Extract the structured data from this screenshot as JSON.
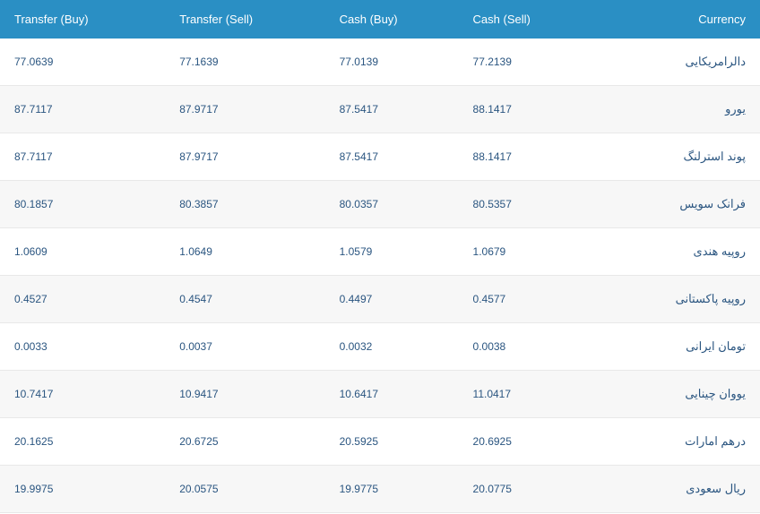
{
  "table": {
    "type": "table",
    "header_bg": "#2a8fc4",
    "header_text_color": "#ffffff",
    "row_even_bg": "#f7f7f7",
    "row_odd_bg": "#ffffff",
    "body_text_color": "#2a5580",
    "border_color": "#e8e8e8",
    "header_fontsize": 13,
    "body_fontsize": 12,
    "columns": [
      {
        "key": "transfer_buy",
        "label": "Transfer (Buy)",
        "align": "left"
      },
      {
        "key": "transfer_sell",
        "label": "Transfer (Sell)",
        "align": "left"
      },
      {
        "key": "cash_buy",
        "label": "Cash (Buy)",
        "align": "left"
      },
      {
        "key": "cash_sell",
        "label": "Cash (Sell)",
        "align": "left"
      },
      {
        "key": "currency",
        "label": "Currency",
        "align": "right"
      }
    ],
    "rows": [
      {
        "transfer_buy": "77.0639",
        "transfer_sell": "77.1639",
        "cash_buy": "77.0139",
        "cash_sell": "77.2139",
        "currency": "دالرامریکایی"
      },
      {
        "transfer_buy": "87.7117",
        "transfer_sell": "87.9717",
        "cash_buy": "87.5417",
        "cash_sell": "88.1417",
        "currency": "یورو"
      },
      {
        "transfer_buy": "87.7117",
        "transfer_sell": "87.9717",
        "cash_buy": "87.5417",
        "cash_sell": "88.1417",
        "currency": "پوند استرلنگ"
      },
      {
        "transfer_buy": "80.1857",
        "transfer_sell": "80.3857",
        "cash_buy": "80.0357",
        "cash_sell": "80.5357",
        "currency": "فرانک سویس"
      },
      {
        "transfer_buy": "1.0609",
        "transfer_sell": "1.0649",
        "cash_buy": "1.0579",
        "cash_sell": "1.0679",
        "currency": "روپیه هندی"
      },
      {
        "transfer_buy": "0.4527",
        "transfer_sell": "0.4547",
        "cash_buy": "0.4497",
        "cash_sell": "0.4577",
        "currency": "روپیه پاکستانی"
      },
      {
        "transfer_buy": "0.0033",
        "transfer_sell": "0.0037",
        "cash_buy": "0.0032",
        "cash_sell": "0.0038",
        "currency": "تومان ایرانی"
      },
      {
        "transfer_buy": "10.7417",
        "transfer_sell": "10.9417",
        "cash_buy": "10.6417",
        "cash_sell": "11.0417",
        "currency": "یووان چینایی"
      },
      {
        "transfer_buy": "20.1625",
        "transfer_sell": "20.6725",
        "cash_buy": "20.5925",
        "cash_sell": "20.6925",
        "currency": "درهم امارات"
      },
      {
        "transfer_buy": "19.9975",
        "transfer_sell": "20.0575",
        "cash_buy": "19.9775",
        "cash_sell": "20.0775",
        "currency": "ریال سعودی"
      }
    ]
  }
}
